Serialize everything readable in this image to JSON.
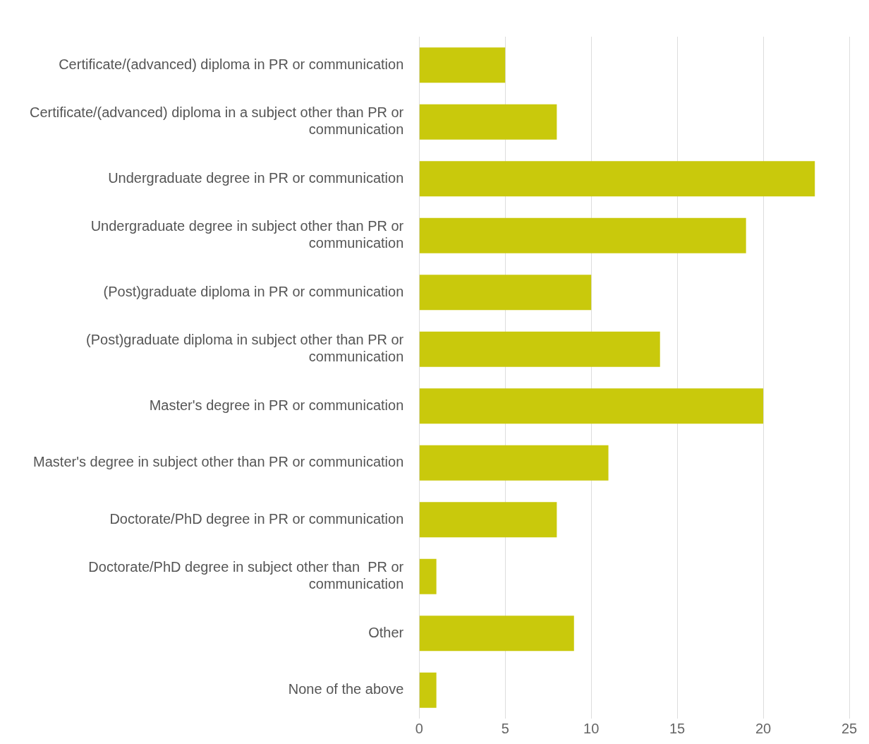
{
  "chart_data": {
    "type": "bar",
    "orientation": "horizontal",
    "categories": [
      "Certificate/(advanced) diploma in PR or communication",
      "Certificate/(advanced) diploma in a subject other than PR or communication",
      "Undergraduate degree in PR or communication",
      "Undergraduate degree in subject other than PR or communication",
      "(Post)graduate diploma in PR or communication",
      "(Post)graduate diploma in subject other than PR or communication",
      "Master's degree in PR or communication",
      "Master's degree in subject other than PR or communication",
      "Doctorate/PhD degree in PR or communication",
      "Doctorate/PhD degree in subject other than  PR or communication",
      "Other",
      "None of the above"
    ],
    "values": [
      5,
      8,
      23,
      19,
      10,
      14,
      20,
      11,
      8,
      1,
      9,
      1
    ],
    "color": "#c9c90c",
    "xlim": [
      0,
      25
    ],
    "xticks": [
      0,
      5,
      10,
      15,
      20,
      25
    ],
    "grid": "x",
    "legend": false
  }
}
